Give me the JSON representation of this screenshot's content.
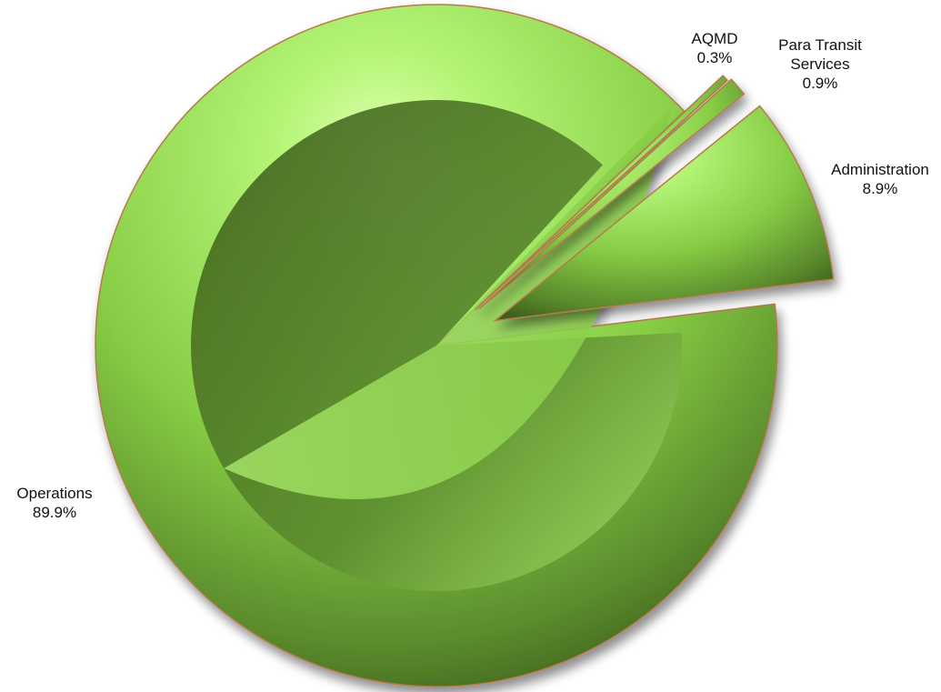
{
  "chart_data": {
    "type": "pie",
    "style": "3d-exploded",
    "title": "",
    "categories": [
      "Operations",
      "Administration",
      "Para Transit Services",
      "AQMD"
    ],
    "values": [
      89.9,
      8.9,
      0.9,
      0.3
    ],
    "labels": [
      "89.9%",
      "8.9%",
      "0.9%",
      "0.3%"
    ],
    "exploded": [
      false,
      true,
      true,
      true
    ],
    "legend": "none",
    "colors": {
      "light": "#b4f576",
      "mid": "#86cc44",
      "dark": "#3e5e1c",
      "edge": "#b87a4c"
    }
  }
}
